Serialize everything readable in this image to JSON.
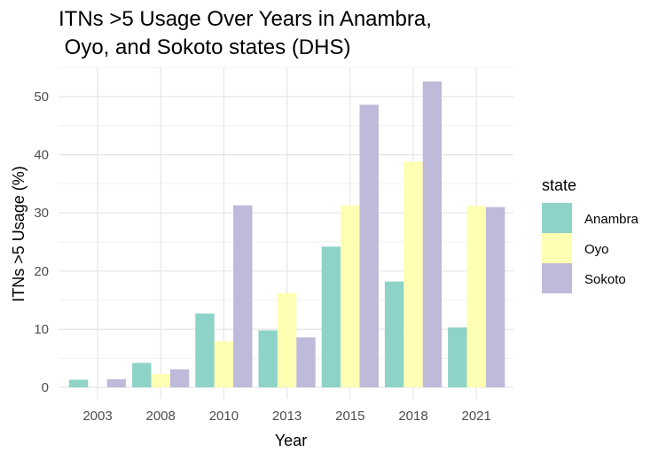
{
  "chart_data": {
    "type": "bar",
    "title_lines": [
      "ITNs >5 Usage Over Years in Anambra,",
      " Oyo, and Sokoto states (DHS)"
    ],
    "xlabel": "Year",
    "ylabel": "ITNs >5 Usage (%)",
    "categories": [
      "2003",
      "2008",
      "2010",
      "2013",
      "2015",
      "2018",
      "2021"
    ],
    "ylim": [
      0,
      55
    ],
    "yticks": [
      0,
      10,
      20,
      30,
      40,
      50
    ],
    "grid": true,
    "legend": {
      "title": "state",
      "position": "right"
    },
    "series": [
      {
        "name": "Anambra",
        "color": "#8dd3c7",
        "values": [
          1.3,
          4.2,
          12.7,
          9.8,
          24.2,
          18.2,
          10.3
        ]
      },
      {
        "name": "Oyo",
        "color": "#ffffb3",
        "values": [
          0,
          2.3,
          7.9,
          16.2,
          31.3,
          38.8,
          31.2
        ]
      },
      {
        "name": "Sokoto",
        "color": "#bebada",
        "values": [
          1.4,
          3.1,
          31.3,
          8.6,
          48.6,
          52.6,
          31.0
        ]
      }
    ]
  }
}
